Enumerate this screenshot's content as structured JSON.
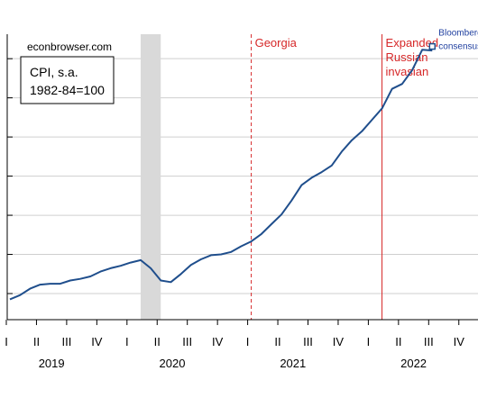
{
  "chart_data": {
    "type": "line",
    "site_label": "econbrowser.com",
    "legend_box": [
      "CPI, s.a.",
      "1982-84=100"
    ],
    "x_quarters": [
      "I",
      "II",
      "III",
      "IV",
      "I",
      "II",
      "III",
      "IV",
      "I",
      "II",
      "III",
      "IV",
      "I",
      "II",
      "III",
      "IV"
    ],
    "x_years": [
      "2019",
      "2020",
      "2021",
      "2022"
    ],
    "recession_shading": {
      "start": "2020-02",
      "end": "2020-04",
      "color": "#d9d9d9"
    },
    "vlines": [
      {
        "date": "2021-01",
        "label": "Georgia",
        "style": "dashed",
        "color": "#d62728"
      },
      {
        "date": "2022-02",
        "label": "Expanded\nRussian\ninvasian",
        "style": "solid",
        "color": "#d62728"
      }
    ],
    "series": [
      {
        "line_color": "#1f4e8c",
        "x": [
          "2019-01",
          "2019-02",
          "2019-03",
          "2019-04",
          "2019-05",
          "2019-06",
          "2019-07",
          "2019-08",
          "2019-09",
          "2019-10",
          "2019-11",
          "2019-12",
          "2020-01",
          "2020-02",
          "2020-03",
          "2020-04",
          "2020-05",
          "2020-06",
          "2020-07",
          "2020-08",
          "2020-09",
          "2020-10",
          "2020-11",
          "2020-12",
          "2021-01",
          "2021-02",
          "2021-03",
          "2021-04",
          "2021-05",
          "2021-06",
          "2021-07",
          "2021-08",
          "2021-09",
          "2021-10",
          "2021-11",
          "2021-12",
          "2022-01",
          "2022-02",
          "2022-03",
          "2022-04",
          "2022-05",
          "2022-06",
          "2022-07"
        ],
        "values": [
          252.5,
          253.0,
          253.8,
          254.3,
          254.4,
          254.4,
          254.8,
          255.0,
          255.3,
          255.9,
          256.3,
          256.6,
          257.0,
          257.3,
          256.3,
          254.8,
          254.6,
          255.6,
          256.7,
          257.4,
          257.9,
          258.0,
          258.3,
          259.0,
          259.6,
          260.5,
          261.7,
          262.9,
          264.6,
          266.5,
          267.4,
          268.1,
          268.9,
          270.6,
          272.0,
          273.1,
          274.5,
          275.9,
          278.3,
          278.9,
          280.6,
          283.1,
          283.0
        ]
      },
      {
        "name": "Bloomberg consensus",
        "type": "point",
        "marker": "square",
        "color": "#1f4e8c",
        "x": [
          "2022-07"
        ],
        "values": [
          283.5
        ]
      }
    ],
    "ylim": [
      250.0,
      285.0
    ],
    "ytick_values": [
      253.2,
      258.0,
      262.8,
      267.6,
      272.4,
      277.2,
      282.0
    ],
    "grid": true,
    "title": "",
    "xlabel": "",
    "ylabel": ""
  }
}
